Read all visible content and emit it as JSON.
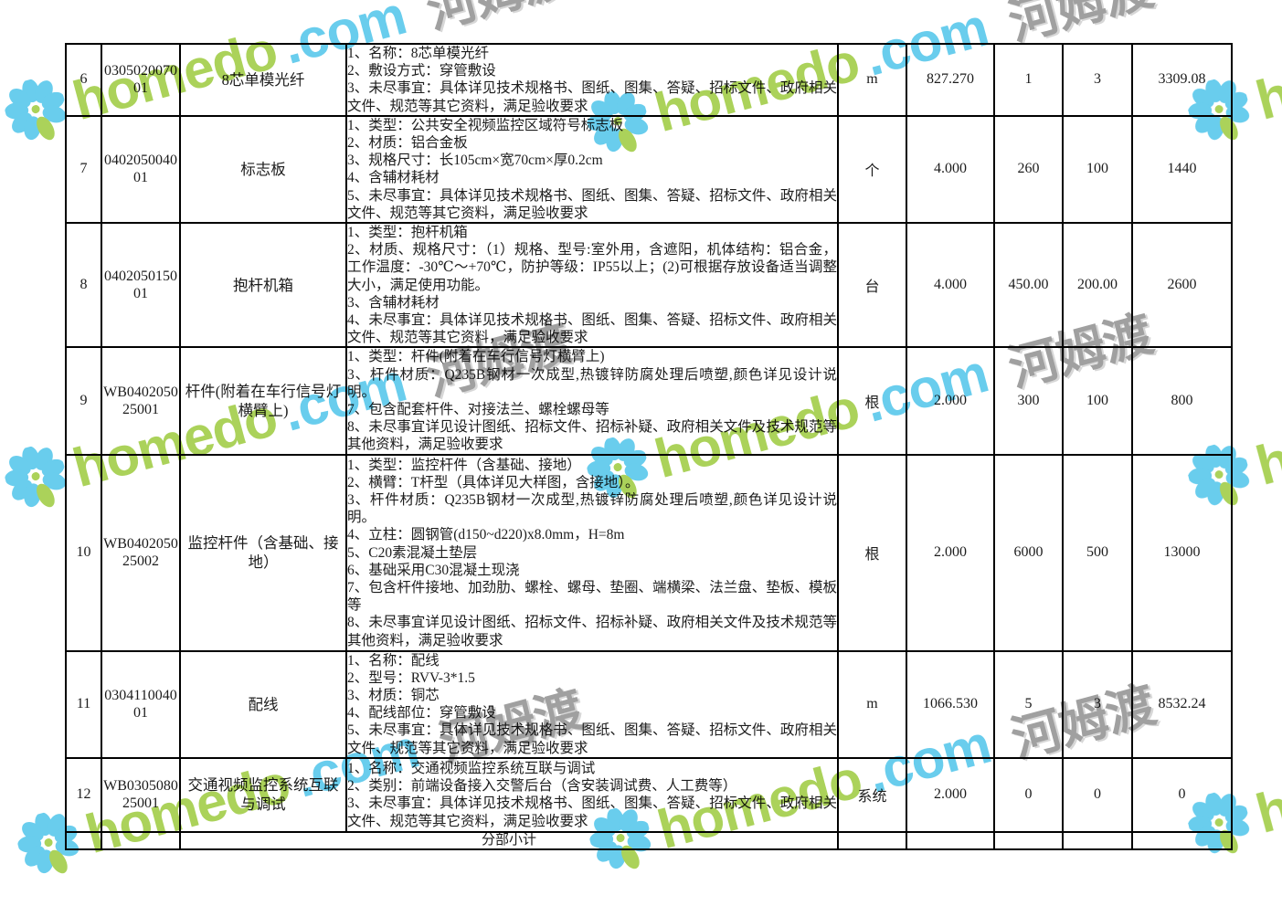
{
  "watermark": {
    "brand": "homedo",
    "domain_suffix": ".com",
    "cjk_name": "河姆渡",
    "colors": {
      "green": "#9cca3c",
      "blue": "#4ec4ea",
      "gray": "#8f8f8f"
    }
  },
  "table": {
    "subtotal_label": "分部小计",
    "rows": [
      {
        "no": "6",
        "code": "030502007001",
        "name": "8芯单模光纤",
        "desc": "1、名称：8芯单模光纤\n2、敷设方式：穿管敷设\n3、未尽事宜：具体详见技术规格书、图纸、图集、答疑、招标文件、政府相关文件、规范等其它资料，满足验收要求",
        "unit": "m",
        "qty": "827.270",
        "price1": "1",
        "price2": "3",
        "total": "3309.08"
      },
      {
        "no": "7",
        "code": "040205004001",
        "name": "标志板",
        "desc": "1、类型：公共安全视频监控区域符号标志板\n2、材质：铝合金板\n3、规格尺寸：长105cm×宽70cm×厚0.2cm\n4、含辅材耗材\n5、未尽事宜：具体详见技术规格书、图纸、图集、答疑、招标文件、政府相关文件、规范等其它资料，满足验收要求",
        "unit": "个",
        "qty": "4.000",
        "price1": "260",
        "price2": "100",
        "total": "1440"
      },
      {
        "no": "8",
        "code": "040205015001",
        "name": "抱杆机箱",
        "desc": "1、类型：抱杆机箱\n2、材质、规格尺寸：（1）规格、型号:室外用，含遮阳，机体结构：铝合金，工作温度：-30℃～+70℃，防护等级：IP55以上；(2)可根据存放设备适当调整大小，满足使用功能。\n3、含辅材耗材\n4、未尽事宜：具体详见技术规格书、图纸、图集、答疑、招标文件、政府相关文件、规范等其它资料，满足验收要求",
        "unit": "台",
        "qty": "4.000",
        "price1": "450.00",
        "price2": "200.00",
        "total": "2600"
      },
      {
        "no": "9",
        "code": "WB040205025001",
        "name": "杆件(附着在车行信号灯横臂上)",
        "desc": "1、类型：杆件(附着在车行信号灯横臂上)\n3、杆件材质：Q235B钢材一次成型,热镀锌防腐处理后喷塑,颜色详见设计说明。\n7、包含配套杆件、对接法兰、螺栓螺母等\n8、未尽事宜详见设计图纸、招标文件、招标补疑、政府相关文件及技术规范等其他资料，满足验收要求",
        "unit": "根",
        "qty": "2.000",
        "price1": "300",
        "price2": "100",
        "total": "800"
      },
      {
        "no": "10",
        "code": "WB040205025002",
        "name": "监控杆件（含基础、接地）",
        "desc": "1、类型：监控杆件（含基础、接地）\n2、横臂：T杆型（具体详见大样图，含接地）。\n3、杆件材质：Q235B钢材一次成型,热镀锌防腐处理后喷塑,颜色详见设计说明。\n4、立柱：圆钢管(d150~d220)x8.0mm，H=8m\n5、C20素混凝土垫层\n6、基础采用C30混凝土现浇\n7、包含杆件接地、加劲肋、螺栓、螺母、垫圈、端横梁、法兰盘、垫板、模板等\n8、未尽事宜详见设计图纸、招标文件、招标补疑、政府相关文件及技术规范等其他资料，满足验收要求",
        "unit": "根",
        "qty": "2.000",
        "price1": "6000",
        "price2": "500",
        "total": "13000"
      },
      {
        "no": "11",
        "code": "030411004001",
        "name": "配线",
        "desc": "1、名称：配线\n2、型号：RVV-3*1.5\n3、材质：铜芯\n4、配线部位：穿管敷设\n5、未尽事宜：具体详见技术规格书、图纸、图集、答疑、招标文件、政府相关文件、规范等其它资料，满足验收要求",
        "unit": "m",
        "qty": "1066.530",
        "price1": "5",
        "price2": "3",
        "total": "8532.24"
      },
      {
        "no": "12",
        "code": "WB030508025001",
        "name": "交通视频监控系统互联与调试",
        "desc": "1、名称：交通视频监控系统互联与调试\n2、类别：前端设备接入交警后台（含安装调试费、人工费等）\n3、未尽事宜：具体详见技术规格书、图纸、图集、答疑、招标文件、政府相关文件、规范等其它资料，满足验收要求",
        "unit": "系统",
        "qty": "2.000",
        "price1": "0",
        "price2": "0",
        "total": "0"
      }
    ]
  }
}
